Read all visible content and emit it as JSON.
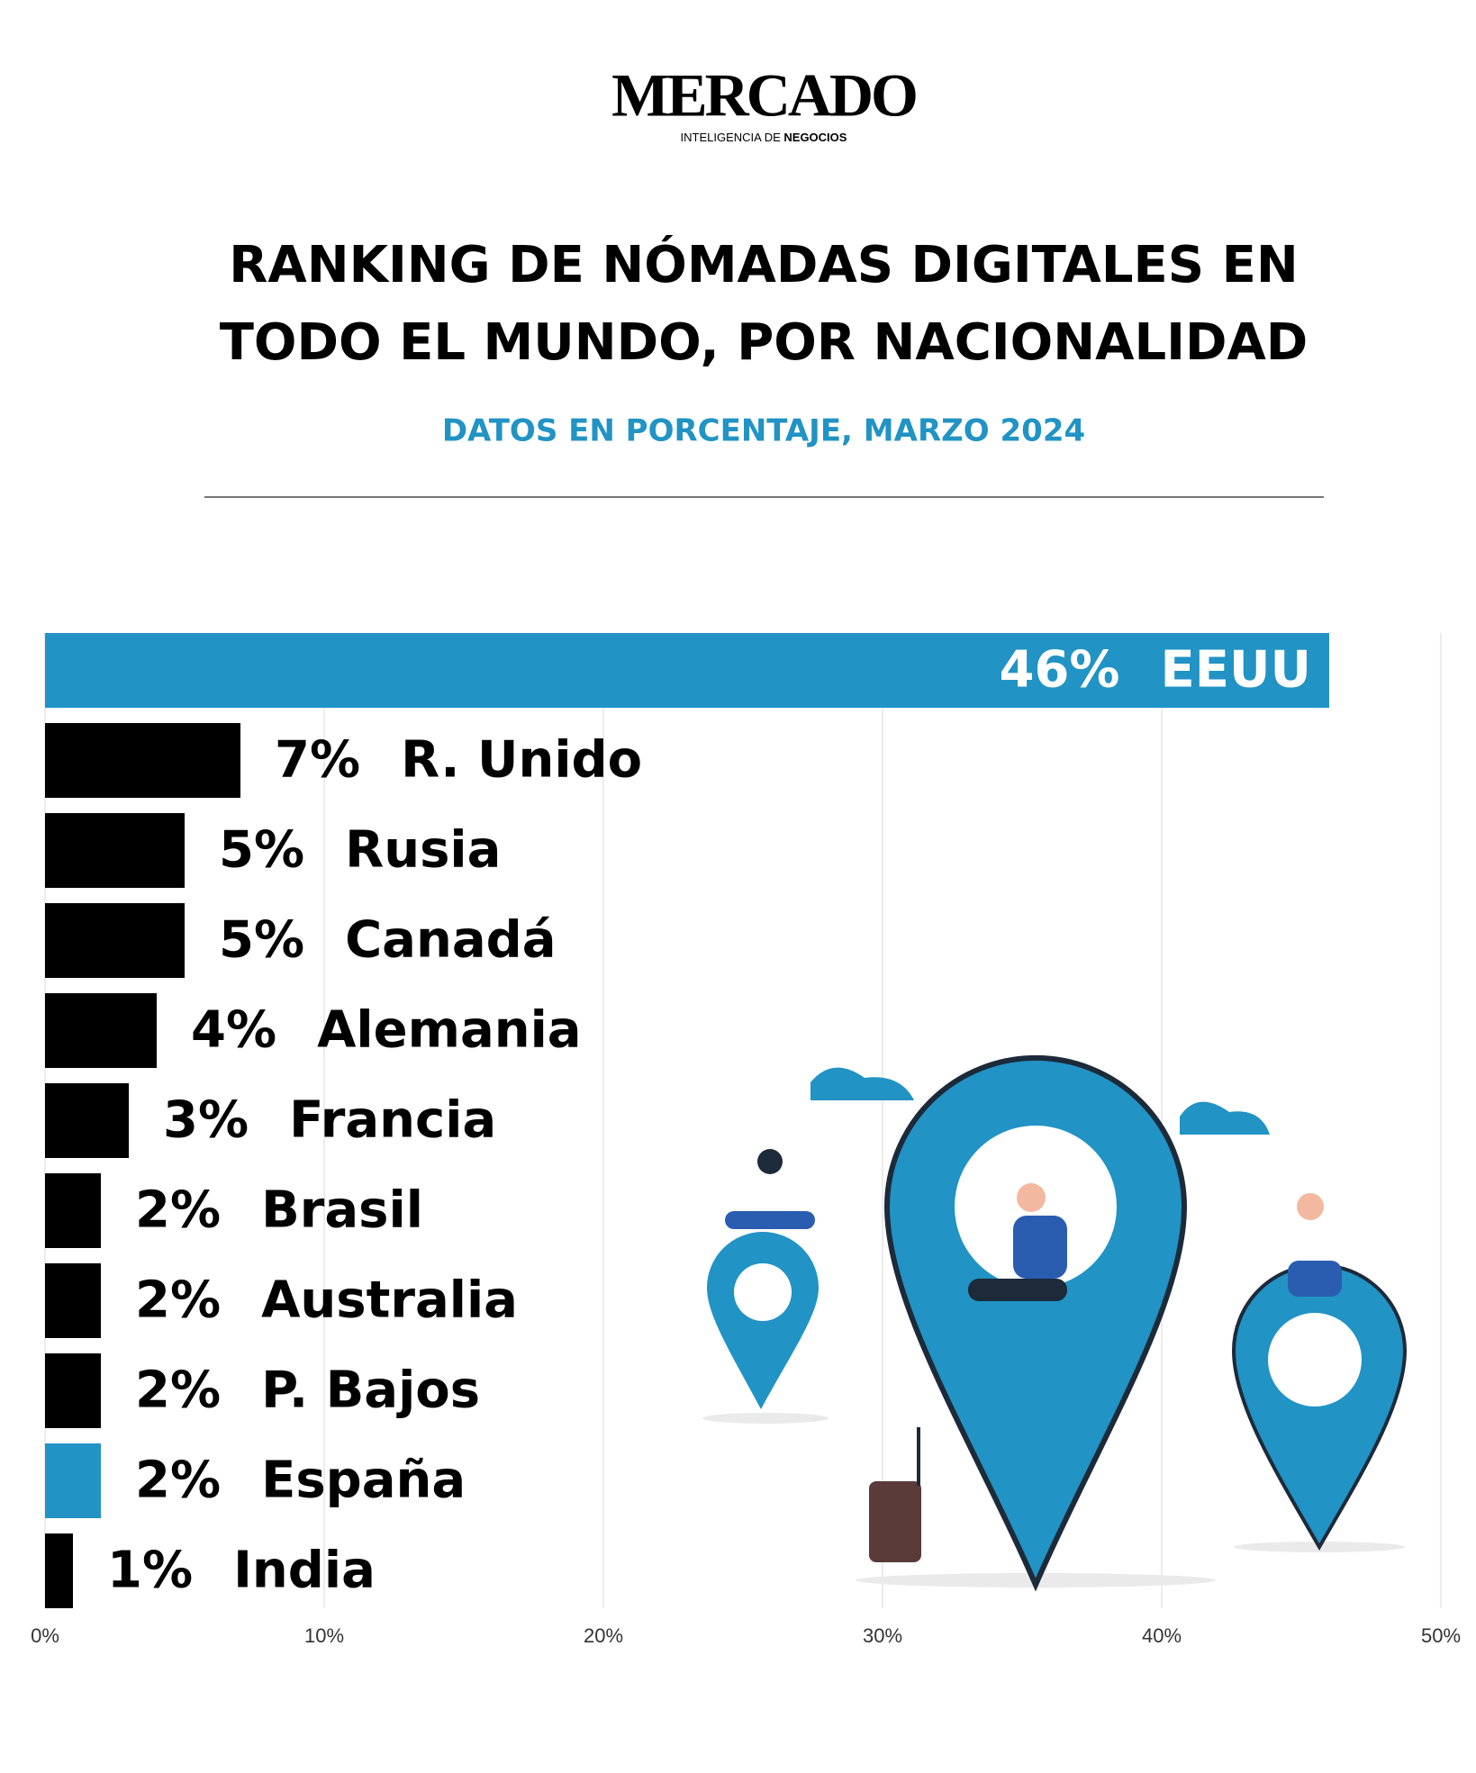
{
  "header": {
    "brand": "MERCADO",
    "tagline": "INTELIGENCIA DE ",
    "tagline_bold": "NEGOCIOS"
  },
  "chart_data": {
    "type": "bar",
    "orientation": "horizontal",
    "title": [
      "RANKING DE NÓMADAS DIGITALES EN",
      "TODO EL MUNDO, POR NACIONALIDAD"
    ],
    "subtitle": "DATOS EN PORCENTAJE, MARZO 2024",
    "categories": [
      "EEUU",
      "R. Unido",
      "Rusia",
      "Canadá",
      "Alemania",
      "Francia",
      "Brasil",
      "Australia",
      "P. Bajos",
      "España",
      "India"
    ],
    "values": [
      46,
      7,
      5,
      5,
      4,
      3,
      2,
      2,
      2,
      2,
      1
    ],
    "value_labels": [
      "46%",
      "7%",
      "5%",
      "5%",
      "4%",
      "3%",
      "2%",
      "2%",
      "2%",
      "2%",
      "1%"
    ],
    "colors": [
      "#2193c4",
      "#000000",
      "#000000",
      "#000000",
      "#000000",
      "#000000",
      "#000000",
      "#000000",
      "#000000",
      "#2193c4",
      "#000000"
    ],
    "xlim": [
      0,
      50
    ],
    "xticks": [
      {
        "value": 0,
        "label": "0%"
      },
      {
        "value": 10,
        "label": "10%"
      },
      {
        "value": 20,
        "label": "20%"
      },
      {
        "value": 30,
        "label": "30%"
      },
      {
        "value": 40,
        "label": "40%"
      },
      {
        "value": 50,
        "label": "50%"
      }
    ],
    "grid": true
  }
}
